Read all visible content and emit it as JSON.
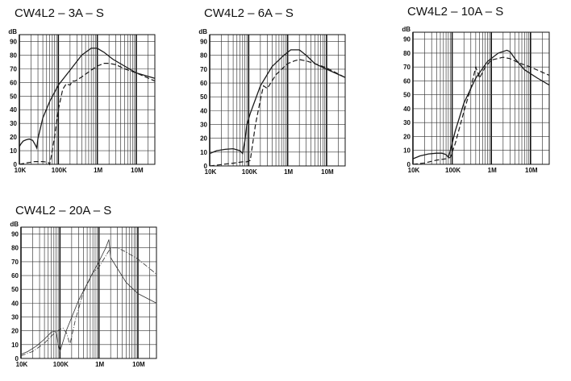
{
  "chart_data": [
    {
      "type": "line",
      "title": "CW4L2 – 3A – S",
      "ylabel": "dB",
      "xscale": "log",
      "xlim": [
        10000,
        30000000
      ],
      "ylim": [
        0,
        95
      ],
      "yticks": [
        "0",
        "10",
        "20",
        "30",
        "40",
        "50",
        "60",
        "70",
        "80",
        "90"
      ],
      "xticks": [
        {
          "value": 10000,
          "label": "10K"
        },
        {
          "value": 100000,
          "label": "100K"
        },
        {
          "value": 1000000,
          "label": "1M"
        },
        {
          "value": 10000000,
          "label": "10M"
        }
      ],
      "grid": true,
      "series": [
        {
          "style": "solid",
          "x": [
            10000,
            11000,
            12500,
            15000,
            18000,
            22000,
            26000,
            28000,
            30000,
            40000,
            60000,
            100000,
            200000,
            400000,
            700000,
            1000000,
            1500000,
            2500000,
            5000000,
            10000000,
            30000000
          ],
          "y": [
            13,
            15,
            17,
            18,
            18.5,
            17.5,
            14,
            12,
            19,
            34,
            46,
            58,
            69,
            80,
            85,
            85,
            82,
            77,
            72,
            67,
            63
          ]
        },
        {
          "style": "dashed",
          "x": [
            10000,
            15000,
            25000,
            40000,
            55000,
            60000,
            65000,
            80000,
            100000,
            130000,
            160000,
            200000,
            230000,
            270000,
            400000,
            700000,
            1000000,
            1500000,
            2000000,
            3000000,
            5000000,
            10000000,
            30000000
          ],
          "y": [
            0,
            1,
            2,
            2,
            1.5,
            0,
            5,
            20,
            40,
            55,
            59,
            58,
            61,
            61,
            64,
            69,
            72,
            74,
            74,
            73,
            70,
            67,
            61
          ]
        }
      ]
    },
    {
      "type": "line",
      "title": "CW4L2 – 6A – S",
      "ylabel": "dB",
      "xscale": "log",
      "xlim": [
        10000,
        30000000
      ],
      "ylim": [
        0,
        95
      ],
      "yticks": [
        "0",
        "10",
        "20",
        "30",
        "40",
        "50",
        "60",
        "70",
        "80",
        "90"
      ],
      "xticks": [
        {
          "value": 10000,
          "label": "10K"
        },
        {
          "value": 100000,
          "label": "100K"
        },
        {
          "value": 1000000,
          "label": "1M"
        },
        {
          "value": 10000000,
          "label": "10M"
        }
      ],
      "grid": true,
      "series": [
        {
          "style": "solid",
          "x": [
            10000,
            15000,
            25000,
            40000,
            60000,
            70000,
            80000,
            90000,
            110000,
            200000,
            400000,
            800000,
            1200000,
            2000000,
            3000000,
            5000000,
            10000000,
            30000000
          ],
          "y": [
            9,
            11,
            12,
            12.5,
            11,
            9,
            18,
            30,
            38,
            58,
            72,
            80,
            84,
            84,
            80,
            74,
            70,
            64
          ]
        },
        {
          "style": "dashed",
          "x": [
            10000,
            20000,
            40000,
            70000,
            90000,
            110000,
            150000,
            200000,
            240000,
            300000,
            500000,
            1000000,
            1500000,
            2000000,
            3000000,
            5000000,
            10000000,
            30000000
          ],
          "y": [
            0,
            1,
            2,
            3,
            3,
            4,
            30,
            48,
            58,
            56,
            66,
            74,
            76,
            77,
            76,
            74,
            71,
            64
          ]
        }
      ]
    },
    {
      "type": "line",
      "title": "CW4L2 – 10A – S",
      "ylabel": "dB",
      "xscale": "log",
      "xlim": [
        10000,
        30000000
      ],
      "ylim": [
        0,
        95
      ],
      "yticks": [
        "0",
        "10",
        "20",
        "30",
        "40",
        "50",
        "60",
        "70",
        "80",
        "90"
      ],
      "xticks": [
        {
          "value": 10000,
          "label": "10K"
        },
        {
          "value": 100000,
          "label": "100K"
        },
        {
          "value": 1000000,
          "label": "1M"
        },
        {
          "value": 10000000,
          "label": "10M"
        }
      ],
      "grid": true,
      "series": [
        {
          "style": "solid",
          "x": [
            10000,
            15000,
            25000,
            40000,
            55000,
            70000,
            80000,
            90000,
            120000,
            200000,
            400000,
            800000,
            1500000,
            2500000,
            3000000,
            4000000,
            7000000,
            15000000,
            30000000
          ],
          "y": [
            4,
            6,
            7.5,
            8,
            8,
            7,
            5,
            10,
            24,
            44,
            62,
            74,
            80,
            82,
            81,
            76,
            68,
            62,
            57
          ]
        },
        {
          "style": "dashed",
          "x": [
            10000,
            20000,
            40000,
            70000,
            90000,
            120000,
            200000,
            300000,
            400000,
            450000,
            500000,
            700000,
            1000000,
            2000000,
            3000000,
            5000000,
            10000000,
            30000000
          ],
          "y": [
            0,
            1,
            3,
            4,
            5,
            15,
            38,
            55,
            70,
            66,
            62,
            70,
            75,
            77,
            76,
            73,
            70,
            64
          ]
        }
      ]
    },
    {
      "type": "line",
      "title": "CW4L2 – 20A – S",
      "ylabel": "dB",
      "xscale": "log",
      "xlim": [
        10000,
        30000000
      ],
      "ylim": [
        0,
        95
      ],
      "yticks": [
        "0",
        "10",
        "20",
        "30",
        "40",
        "50",
        "60",
        "70",
        "80",
        "90"
      ],
      "xticks": [
        {
          "value": 10000,
          "label": "10K"
        },
        {
          "value": 100000,
          "label": "100K"
        },
        {
          "value": 1000000,
          "label": "1M"
        },
        {
          "value": 10000000,
          "label": "10M"
        }
      ],
      "grid": true,
      "series": [
        {
          "style": "thin-solid",
          "x": [
            10000,
            15000,
            25000,
            40000,
            60000,
            80000,
            90000,
            100000,
            150000,
            300000,
            700000,
            1000000,
            1500000,
            1800000,
            2000000,
            3000000,
            5000000,
            10000000,
            30000000
          ],
          "y": [
            3,
            5,
            9,
            14,
            19,
            20,
            10,
            5,
            21,
            42,
            62,
            70,
            80,
            86,
            73,
            65,
            55,
            47,
            40
          ]
        },
        {
          "style": "thin-dashed",
          "x": [
            10000,
            20000,
            40000,
            70000,
            100000,
            120000,
            150000,
            180000,
            250000,
            400000,
            700000,
            1000000,
            2000000,
            3000000,
            5000000,
            10000000,
            30000000
          ],
          "y": [
            2,
            5,
            11,
            18,
            21,
            22,
            18,
            10,
            28,
            48,
            62,
            66,
            80,
            80,
            77,
            72,
            61
          ]
        }
      ]
    }
  ]
}
